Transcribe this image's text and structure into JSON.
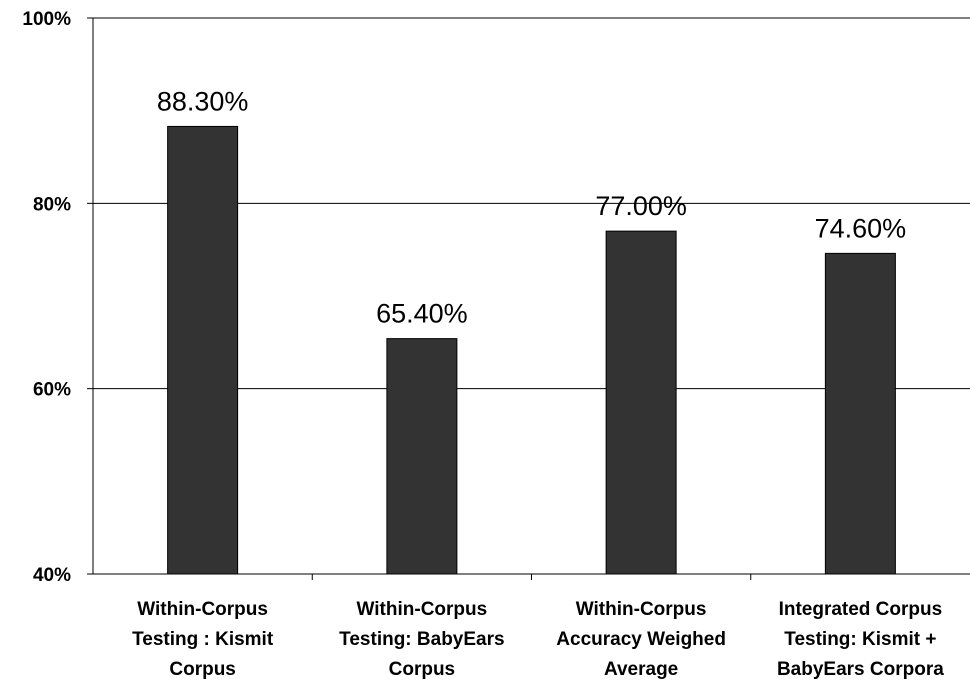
{
  "chart_data": {
    "type": "bar",
    "categories": [
      [
        "Within-Corpus",
        "Testing : Kismit",
        "Corpus"
      ],
      [
        "Within-Corpus",
        "Testing: BabyEars",
        "Corpus"
      ],
      [
        "Within-Corpus",
        "Accuracy Weighed",
        "Average"
      ],
      [
        "Integrated Corpus",
        "Testing: Kismit +",
        "BabyEars Corpora"
      ]
    ],
    "values": [
      88.3,
      65.4,
      77.0,
      74.6
    ],
    "value_labels": [
      "88.30%",
      "65.40%",
      "77.00%",
      "74.60%"
    ],
    "ylim": [
      40,
      100
    ],
    "yticks": [
      40,
      60,
      80,
      100
    ],
    "ytick_labels": [
      "40%",
      "60%",
      "80%",
      "100%"
    ],
    "title": "",
    "xlabel": "",
    "ylabel": "",
    "grid": true,
    "legend": "none",
    "colors": {
      "bar": "#333333",
      "bar_stroke": "#000000",
      "grid": "#000000"
    }
  }
}
